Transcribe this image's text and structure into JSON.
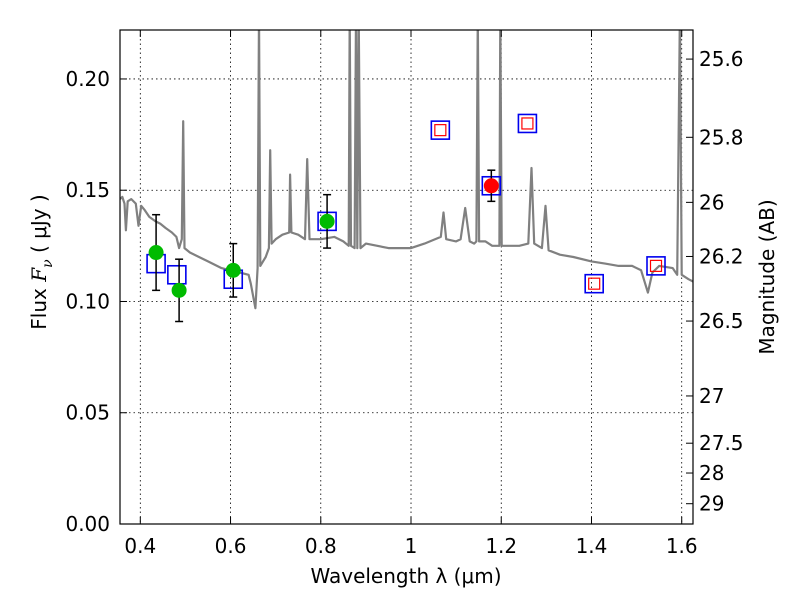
{
  "chart_data": {
    "type": "scatter",
    "xlabel": "Wavelength  λ (μm)",
    "ylabel_parts": [
      "Flux  ",
      "F",
      "ν",
      "  (  μJy  )"
    ],
    "y2label": "Magnitude (AB)",
    "xlim": [
      0.355,
      1.625
    ],
    "ylim": [
      0.0,
      0.222
    ],
    "grid": true,
    "x_ticks": [
      {
        "value": 0.4,
        "label": "0.4"
      },
      {
        "value": 0.6,
        "label": "0.6"
      },
      {
        "value": 0.8,
        "label": "0.8"
      },
      {
        "value": 1.0,
        "label": "1"
      },
      {
        "value": 1.2,
        "label": "1.2"
      },
      {
        "value": 1.4,
        "label": "1.4"
      },
      {
        "value": 1.6,
        "label": "1.6"
      }
    ],
    "y_ticks": [
      {
        "value": 0.0,
        "label": "0.00"
      },
      {
        "value": 0.05,
        "label": "0.05"
      },
      {
        "value": 0.1,
        "label": "0.10"
      },
      {
        "value": 0.15,
        "label": "0.15"
      },
      {
        "value": 0.2,
        "label": "0.20"
      }
    ],
    "y2_ticks": [
      {
        "mag": 25.6,
        "label": "25.6"
      },
      {
        "mag": 25.8,
        "label": "25.8"
      },
      {
        "mag": 26.0,
        "label": "26"
      },
      {
        "mag": 26.2,
        "label": "26.2"
      },
      {
        "mag": 26.5,
        "label": "26.5"
      },
      {
        "mag": 27.0,
        "label": "27"
      },
      {
        "mag": 27.5,
        "label": "27.5"
      },
      {
        "mag": 28.0,
        "label": "28"
      },
      {
        "mag": 29.0,
        "label": "29"
      }
    ],
    "series": [
      {
        "kind": "model_spectrum",
        "color": "#808080",
        "points": [
          [
            0.355,
            0.146
          ],
          [
            0.36,
            0.147
          ],
          [
            0.365,
            0.144
          ],
          [
            0.368,
            0.132
          ],
          [
            0.372,
            0.145
          ],
          [
            0.38,
            0.146
          ],
          [
            0.39,
            0.144
          ],
          [
            0.396,
            0.134
          ],
          [
            0.402,
            0.143
          ],
          [
            0.41,
            0.141
          ],
          [
            0.42,
            0.138
          ],
          [
            0.434,
            0.136
          ],
          [
            0.444,
            0.135
          ],
          [
            0.456,
            0.133
          ],
          [
            0.47,
            0.131
          ],
          [
            0.48,
            0.129
          ],
          [
            0.486,
            0.124
          ],
          [
            0.492,
            0.128
          ],
          [
            0.495,
            0.181
          ],
          [
            0.498,
            0.124
          ],
          [
            0.51,
            0.122
          ],
          [
            0.53,
            0.12
          ],
          [
            0.55,
            0.118
          ],
          [
            0.58,
            0.115
          ],
          [
            0.6,
            0.114
          ],
          [
            0.62,
            0.113
          ],
          [
            0.64,
            0.112
          ],
          [
            0.645,
            0.108
          ],
          [
            0.655,
            0.097
          ],
          [
            0.66,
            0.115
          ],
          [
            0.663,
            0.23
          ],
          [
            0.666,
            0.116
          ],
          [
            0.672,
            0.118
          ],
          [
            0.678,
            0.12
          ],
          [
            0.685,
            0.124
          ],
          [
            0.688,
            0.168
          ],
          [
            0.691,
            0.126
          ],
          [
            0.7,
            0.128
          ],
          [
            0.715,
            0.13
          ],
          [
            0.73,
            0.131
          ],
          [
            0.732,
            0.157
          ],
          [
            0.735,
            0.131
          ],
          [
            0.75,
            0.13
          ],
          [
            0.765,
            0.128
          ],
          [
            0.77,
            0.164
          ],
          [
            0.775,
            0.128
          ],
          [
            0.8,
            0.128
          ],
          [
            0.83,
            0.129
          ],
          [
            0.85,
            0.127
          ],
          [
            0.862,
            0.125
          ],
          [
            0.864,
            0.23
          ],
          [
            0.867,
            0.125
          ],
          [
            0.875,
            0.124
          ],
          [
            0.878,
            0.23
          ],
          [
            0.881,
            0.124
          ],
          [
            0.884,
            0.23
          ],
          [
            0.888,
            0.124
          ],
          [
            0.9,
            0.126
          ],
          [
            0.95,
            0.124
          ],
          [
            1.0,
            0.124
          ],
          [
            1.03,
            0.126
          ],
          [
            1.066,
            0.129
          ],
          [
            1.072,
            0.14
          ],
          [
            1.078,
            0.128
          ],
          [
            1.1,
            0.127
          ],
          [
            1.11,
            0.128
          ],
          [
            1.12,
            0.142
          ],
          [
            1.13,
            0.127
          ],
          [
            1.14,
            0.126
          ],
          [
            1.145,
            0.127
          ],
          [
            1.148,
            0.23
          ],
          [
            1.151,
            0.127
          ],
          [
            1.165,
            0.127
          ],
          [
            1.18,
            0.125
          ],
          [
            1.19,
            0.125
          ],
          [
            1.196,
            0.125
          ],
          [
            1.198,
            0.23
          ],
          [
            1.201,
            0.125
          ],
          [
            1.21,
            0.125
          ],
          [
            1.24,
            0.125
          ],
          [
            1.26,
            0.126
          ],
          [
            1.267,
            0.16
          ],
          [
            1.273,
            0.126
          ],
          [
            1.29,
            0.124
          ],
          [
            1.298,
            0.143
          ],
          [
            1.305,
            0.123
          ],
          [
            1.33,
            0.121
          ],
          [
            1.36,
            0.12
          ],
          [
            1.4,
            0.118
          ],
          [
            1.43,
            0.117
          ],
          [
            1.46,
            0.116
          ],
          [
            1.49,
            0.116
          ],
          [
            1.51,
            0.114
          ],
          [
            1.525,
            0.104
          ],
          [
            1.535,
            0.113
          ],
          [
            1.55,
            0.116
          ],
          [
            1.58,
            0.115
          ],
          [
            1.59,
            0.112
          ],
          [
            1.596,
            0.23
          ],
          [
            1.6,
            0.112
          ],
          [
            1.615,
            0.11
          ],
          [
            1.625,
            0.109
          ]
        ]
      },
      {
        "kind": "model_band_flux",
        "marker": "open-square",
        "color": "#0000ee",
        "points": [
          [
            0.435,
            0.117
          ],
          [
            0.481,
            0.112
          ],
          [
            0.606,
            0.11
          ],
          [
            0.814,
            0.136
          ],
          [
            1.065,
            0.177
          ],
          [
            1.178,
            0.152
          ],
          [
            1.258,
            0.18
          ],
          [
            1.406,
            0.108
          ],
          [
            1.543,
            0.116
          ]
        ]
      },
      {
        "kind": "observed_optical",
        "marker": "filled-circle",
        "color": "#00bb00",
        "points": [
          {
            "x": 0.435,
            "y": 0.122,
            "err": 0.017
          },
          {
            "x": 0.486,
            "y": 0.105,
            "err": 0.014
          },
          {
            "x": 0.606,
            "y": 0.114,
            "err": 0.012
          },
          {
            "x": 0.814,
            "y": 0.136,
            "err": 0.012
          }
        ]
      },
      {
        "kind": "observed_nir",
        "marker": "filled-circle",
        "color": "#ff0000",
        "points": [
          {
            "x": 1.178,
            "y": 0.152,
            "err": 0.007
          }
        ]
      },
      {
        "kind": "observed_upper",
        "marker": "open-square-small",
        "color": "#ff0000",
        "points": [
          [
            1.065,
            0.177
          ],
          [
            1.258,
            0.18
          ],
          [
            1.406,
            0.108
          ],
          [
            1.543,
            0.116
          ]
        ]
      }
    ]
  }
}
